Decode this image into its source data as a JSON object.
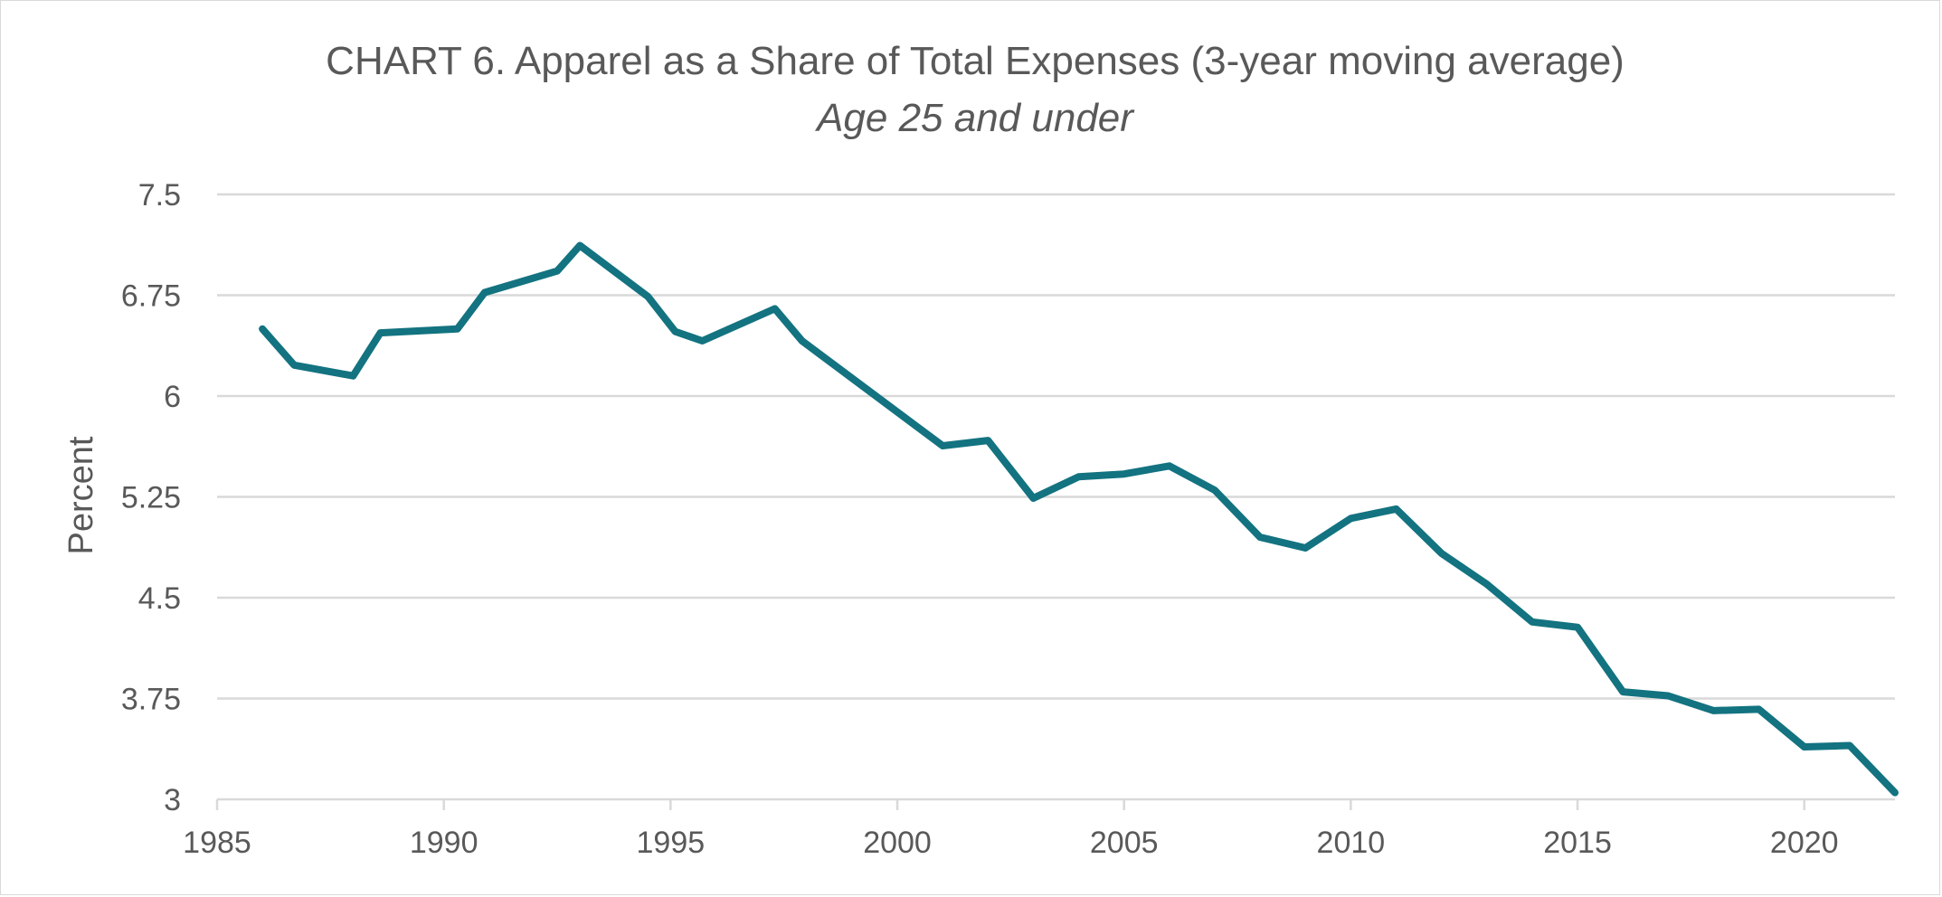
{
  "chart_data": {
    "type": "line",
    "title": "CHART 6. Apparel as a Share of Total Expenses (3-year moving average)",
    "subtitle": "Age 25 and under",
    "xlabel": "",
    "ylabel": "Percent",
    "xlim": [
      1985,
      2022
    ],
    "ylim": [
      3,
      7.5
    ],
    "x_ticks": [
      "1985",
      "1990",
      "1995",
      "2000",
      "2005",
      "2010",
      "2015",
      "2020"
    ],
    "y_ticks": [
      "3",
      "3.75",
      "4.5",
      "5.25",
      "6",
      "6.75",
      "7.5"
    ],
    "grid": true,
    "legend": "none",
    "line_color": "#137380",
    "grid_color": "#d9d9d9",
    "series": [
      {
        "x": [
          1986,
          1986.7,
          1988,
          1988.6,
          1990.3,
          1990.9,
          1992.5,
          1993,
          1994.5,
          1995.1,
          1995.7,
          1997.3,
          1997.9,
          2001,
          2002,
          2003,
          2004,
          2005,
          2006,
          2007,
          2008,
          2009,
          2010,
          2011,
          2012,
          2013,
          2014,
          2015,
          2016,
          2017,
          2018,
          2019,
          2020,
          2021,
          2022
        ],
        "values": [
          6.5,
          6.23,
          6.15,
          6.47,
          6.5,
          6.77,
          6.93,
          7.12,
          6.74,
          6.48,
          6.41,
          6.65,
          6.41,
          5.63,
          5.67,
          5.24,
          5.4,
          5.42,
          5.48,
          5.3,
          4.95,
          4.87,
          5.09,
          5.16,
          4.83,
          4.6,
          4.32,
          4.28,
          3.8,
          3.77,
          3.66,
          3.67,
          3.39,
          3.4,
          3.05
        ]
      }
    ]
  }
}
